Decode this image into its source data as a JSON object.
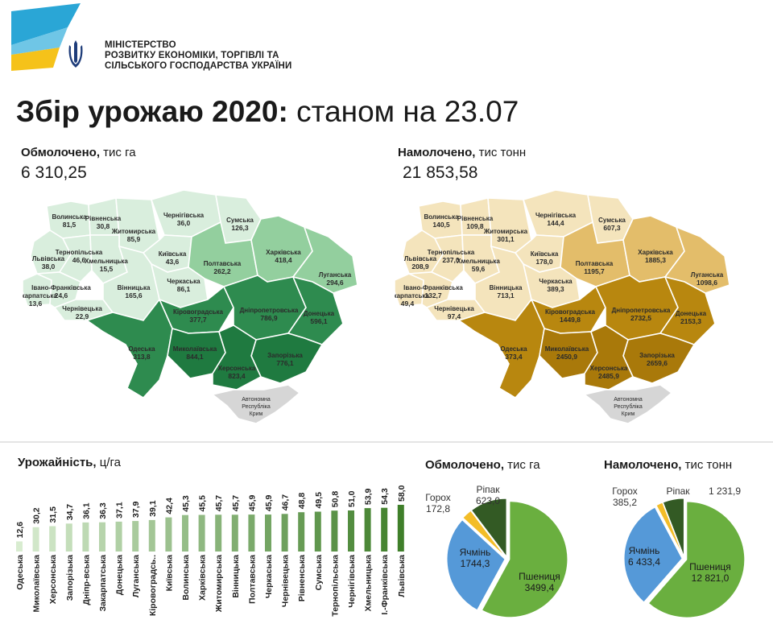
{
  "header": {
    "ministry_line1": "МІНІСТЕРСТВО",
    "ministry_line2": "РОЗВИТКУ ЕКОНОМІКИ, ТОРГІВЛІ ТА",
    "ministry_line3": "СІЛЬСЬКОГО ГОСПОДАРСТВА УКРАЇНИ"
  },
  "title": {
    "bold": "Збір урожаю 2020:",
    "rest": "станом на 23.07"
  },
  "threshed": {
    "label": "Обмолочено,",
    "unit": "тис га",
    "total": "6 310,25"
  },
  "harvested": {
    "label": "Намолочено,",
    "unit": "тис тонн",
    "total": "21 853,58"
  },
  "crimea_label": [
    "Автономна",
    "Республіка",
    "Крим"
  ],
  "colors": {
    "map_green_light": "#d9eedd",
    "map_green_mid": "#93cf9e",
    "map_green_dark": "#2e8b4f",
    "map_gold_light": "#f4e4bc",
    "map_gold_mid": "#e3bd6a",
    "map_gold_dark": "#b8870f",
    "bar_light": "#d8ecd0",
    "bar_dark": "#3f7f2a",
    "wheat": "#6aaf3f",
    "barley": "#5599d8",
    "peas": "#f3bd28",
    "rapeseed": "#335a24"
  },
  "regions": [
    {
      "id": "volyn",
      "name": "Волинська",
      "threshed": "81,5",
      "harvested": "140,5",
      "level": 1
    },
    {
      "id": "rivne",
      "name": "Рівненська",
      "threshed": "30,8",
      "harvested": "109,8",
      "level": 1
    },
    {
      "id": "zhytomyr",
      "name": "Житомирська",
      "threshed": "85,9",
      "harvested": "301,1",
      "level": 1
    },
    {
      "id": "chernihiv",
      "name": "Чернігівська",
      "threshed": "36,0",
      "harvested": "144,4",
      "level": 1
    },
    {
      "id": "sumy",
      "name": "Сумська",
      "threshed": "126,3",
      "harvested": "607,3",
      "level": 1
    },
    {
      "id": "lviv",
      "name": "Львівська",
      "threshed": "38,0",
      "harvested": "208,9",
      "level": 1
    },
    {
      "id": "ternopil",
      "name": "Тернопільська",
      "threshed": "46,6",
      "harvested": "237,0",
      "level": 1
    },
    {
      "id": "khmelnytskyi",
      "name": "Хмельницька",
      "threshed": "15,5",
      "harvested": "59,6",
      "level": 1
    },
    {
      "id": "kyiv",
      "name": "Київська",
      "threshed": "43,6",
      "harvested": "178,0",
      "level": 1
    },
    {
      "id": "poltava",
      "name": "Полтавська",
      "threshed": "262,2",
      "harvested": "1195,7",
      "level": 2
    },
    {
      "id": "kharkiv",
      "name": "Харківська",
      "threshed": "418,4",
      "harvested": "1885,3",
      "level": 2
    },
    {
      "id": "luhansk",
      "name": "Луганська",
      "threshed": "294,6",
      "harvested": "1098,6",
      "level": 2
    },
    {
      "id": "zakarpattia",
      "name": "Закарпатська",
      "threshed": "13,6",
      "harvested": "49,4",
      "level": 1
    },
    {
      "id": "ivano",
      "name": "Івано-Франківська",
      "threshed": "24,6",
      "harvested": "132,7",
      "level": 1
    },
    {
      "id": "chernivtsi",
      "name": "Чернівецька",
      "threshed": "22,9",
      "harvested": "97,4",
      "level": 1
    },
    {
      "id": "vinnytsia",
      "name": "Вінницька",
      "threshed": "165,6",
      "harvested": "713,1",
      "level": 1
    },
    {
      "id": "cherkasy",
      "name": "Черкаська",
      "threshed": "86,1",
      "harvested": "389,3",
      "level": 1
    },
    {
      "id": "kirovohrad",
      "name": "Кіровоградська",
      "threshed": "377,7",
      "harvested": "1449,8",
      "level": 3
    },
    {
      "id": "dnipro",
      "name": "Дніпропетровська",
      "threshed": "786,9",
      "harvested": "2732,5",
      "level": 3
    },
    {
      "id": "donetsk",
      "name": "Донецька",
      "threshed": "596,1",
      "harvested": "2153,3",
      "level": 3
    },
    {
      "id": "odesa",
      "name": "Одеська",
      "threshed": "313,8",
      "harvested": "373,4",
      "level": 3
    },
    {
      "id": "mykolaiv",
      "name": "Миколаївська",
      "threshed": "844,1",
      "harvested": "2450,9",
      "level": 4
    },
    {
      "id": "zaporizhzhia",
      "name": "Запорізька",
      "threshed": "776,1",
      "harvested": "2659,6",
      "level": 4
    },
    {
      "id": "kherson",
      "name": "Херсонська",
      "threshed": "823,4",
      "harvested": "2485,9",
      "level": 4
    }
  ],
  "yield": {
    "title": "Урожайність,",
    "unit": "ц/га"
  },
  "pie_threshed": {
    "title": "Обмолочено,",
    "unit": "тис га"
  },
  "pie_harvested": {
    "title": "Намолочено,",
    "unit": "тис тонн"
  },
  "chart_data": [
    {
      "type": "bar",
      "title": "Урожайність, ц/га",
      "categories": [
        "Одеська",
        "Миколаївська",
        "Херсонська",
        "Запорізька",
        "Дніпр-вська",
        "Закарпатська",
        "Донецька",
        "Луганська",
        "Кіровоградсь..",
        "Київська",
        "Волинська",
        "Харківська",
        "Житомирська",
        "Вінницька",
        "Полтавська",
        "Черкаська",
        "Чернівецька",
        "Рівненська",
        "Сумська",
        "Тернопільська",
        "Чернігівська",
        "Хмельницька",
        "І.-Франківська",
        "Львівська"
      ],
      "values": [
        12.6,
        30.2,
        31.5,
        34.7,
        36.1,
        36.3,
        37.1,
        37.9,
        39.1,
        42.4,
        45.3,
        45.5,
        45.7,
        45.7,
        45.9,
        45.9,
        46.7,
        48.8,
        49.5,
        50.8,
        51.0,
        53.9,
        54.3,
        58.0
      ],
      "value_labels": [
        "12,6",
        "30,2",
        "31,5",
        "34,7",
        "36,1",
        "36,3",
        "37,1",
        "37,9",
        "39,1",
        "42,4",
        "45,3",
        "45,5",
        "45,7",
        "45,7",
        "45,9",
        "45,9",
        "46,7",
        "48,8",
        "49,5",
        "50,8",
        "51,0",
        "53,9",
        "54,3",
        "58,0"
      ]
    },
    {
      "type": "pie",
      "title": "Обмолочено, тис га",
      "slices": [
        {
          "name": "Пшениця",
          "value": 3499.4,
          "label": "3499,4",
          "color": "#6aaf3f"
        },
        {
          "name": "Ячмінь",
          "value": 1744.3,
          "label": "1744,3",
          "color": "#5599d8"
        },
        {
          "name": "Горох",
          "value": 172.8,
          "label": "172,8",
          "color": "#f3bd28"
        },
        {
          "name": "Ріпак",
          "value": 623.0,
          "label": "623,0",
          "color": "#335a24"
        }
      ]
    },
    {
      "type": "pie",
      "title": "Намолочено, тис тонн",
      "slices": [
        {
          "name": "Пшениця",
          "value": 12821.0,
          "label": "12 821,0",
          "color": "#6aaf3f"
        },
        {
          "name": "Ячмінь",
          "value": 6433.4,
          "label": "6 433,4",
          "color": "#5599d8"
        },
        {
          "name": "Горох",
          "value": 385.2,
          "label": "385,2",
          "color": "#f3bd28"
        },
        {
          "name": "Ріпак",
          "value": 1231.9,
          "label": "1 231,9",
          "color": "#335a24"
        }
      ]
    }
  ]
}
